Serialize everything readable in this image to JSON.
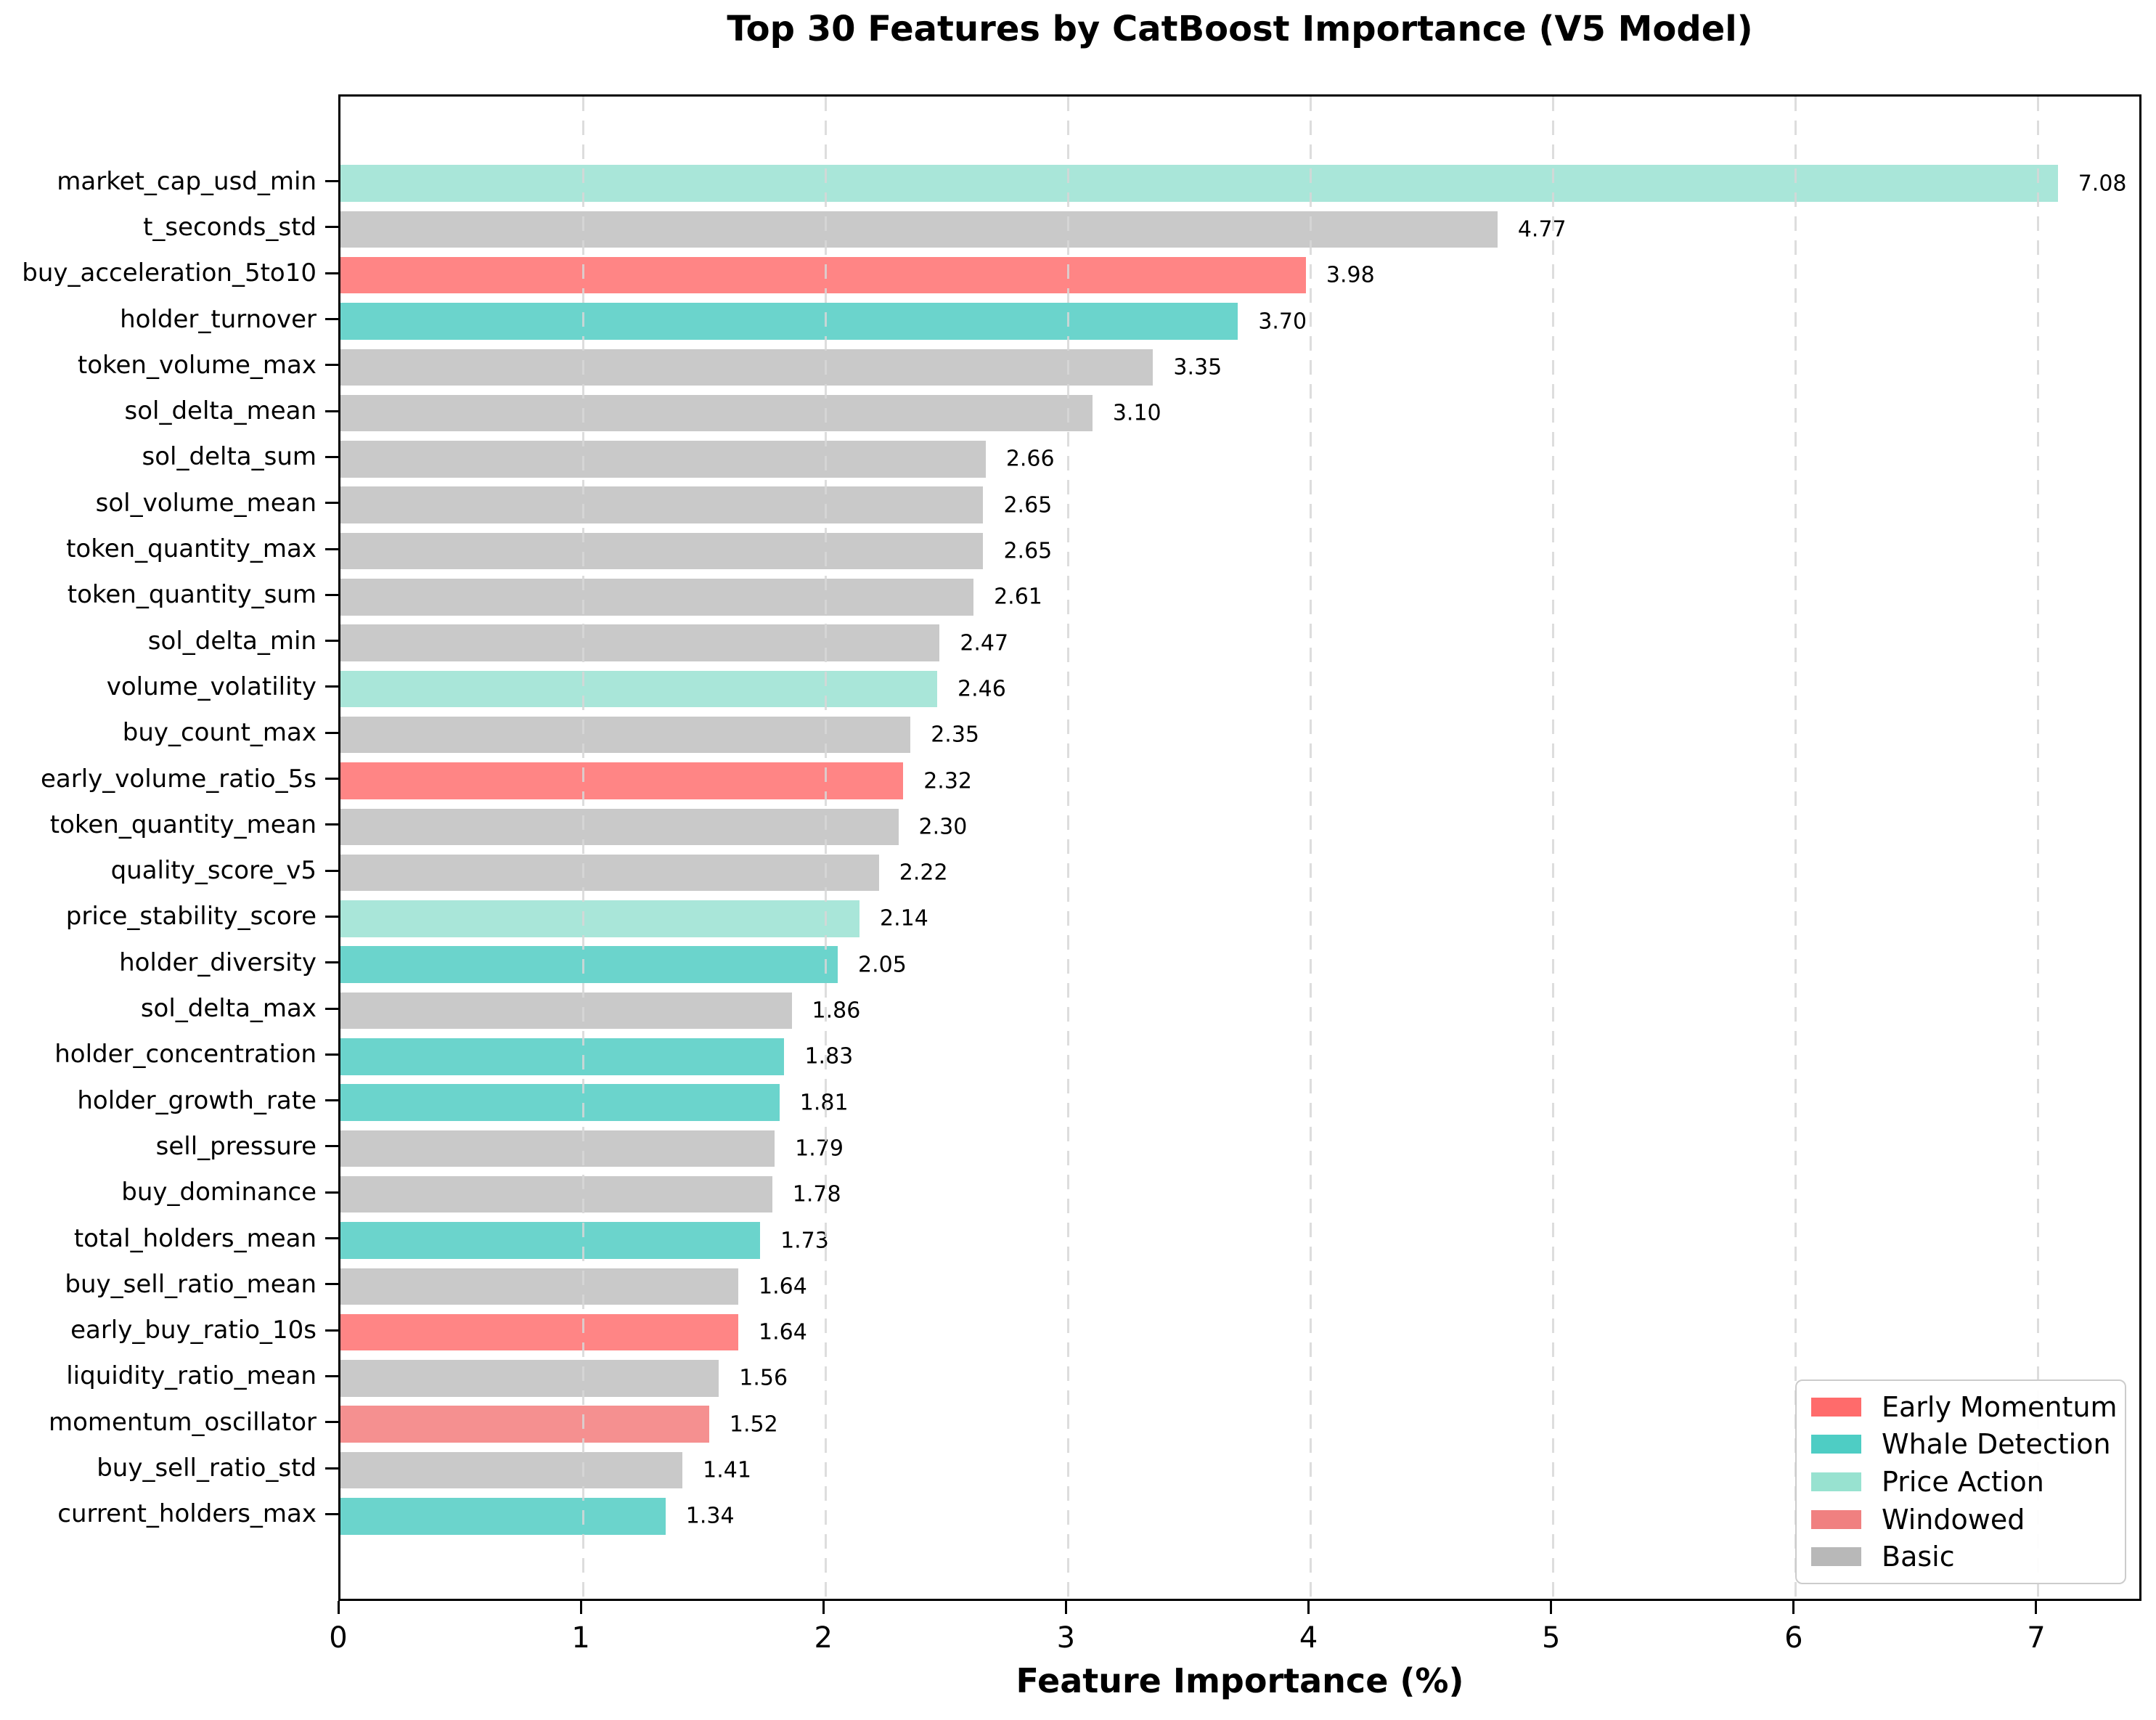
{
  "title": "Top 30 Features by CatBoost Importance (V5 Model)",
  "chart_data": {
    "type": "bar",
    "orientation": "horizontal",
    "title": "Top 30 Features by CatBoost Importance (V5 Model)",
    "xlabel": "Feature Importance (%)",
    "ylabel": "",
    "xlim": [
      0,
      7.434
    ],
    "xticks": [
      0,
      1,
      2,
      3,
      4,
      5,
      6,
      7
    ],
    "grid": "vertical-dashed",
    "legend_position": "lower right",
    "value_label_decimals": 2,
    "categories": {
      "early_momentum": {
        "label": "Early Momentum",
        "legend_color": "#FF6B6B",
        "bar_color": "#FF8585"
      },
      "whale_detection": {
        "label": "Whale Detection",
        "legend_color": "#4ECDC4",
        "bar_color": "#6BD4CC"
      },
      "price_action": {
        "label": "Price Action",
        "legend_color": "#98E2D0",
        "bar_color": "#A9E6D9"
      },
      "windowed": {
        "label": "Windowed",
        "legend_color": "#F08080",
        "bar_color": "#F59090"
      },
      "basic": {
        "label": "Basic",
        "legend_color": "#B8B8B8",
        "bar_color": "#C9C9C9"
      }
    },
    "legend_order": [
      "early_momentum",
      "whale_detection",
      "price_action",
      "windowed",
      "basic"
    ],
    "features": [
      {
        "name": "market_cap_usd_min",
        "value": 7.08,
        "category": "price_action"
      },
      {
        "name": "t_seconds_std",
        "value": 4.77,
        "category": "basic"
      },
      {
        "name": "buy_acceleration_5to10",
        "value": 3.98,
        "category": "early_momentum"
      },
      {
        "name": "holder_turnover",
        "value": 3.7,
        "category": "whale_detection"
      },
      {
        "name": "token_volume_max",
        "value": 3.35,
        "category": "basic"
      },
      {
        "name": "sol_delta_mean",
        "value": 3.1,
        "category": "basic"
      },
      {
        "name": "sol_delta_sum",
        "value": 2.66,
        "category": "basic"
      },
      {
        "name": "sol_volume_mean",
        "value": 2.65,
        "category": "basic"
      },
      {
        "name": "token_quantity_max",
        "value": 2.65,
        "category": "basic"
      },
      {
        "name": "token_quantity_sum",
        "value": 2.61,
        "category": "basic"
      },
      {
        "name": "sol_delta_min",
        "value": 2.47,
        "category": "basic"
      },
      {
        "name": "volume_volatility",
        "value": 2.46,
        "category": "price_action"
      },
      {
        "name": "buy_count_max",
        "value": 2.35,
        "category": "basic"
      },
      {
        "name": "early_volume_ratio_5s",
        "value": 2.32,
        "category": "early_momentum"
      },
      {
        "name": "token_quantity_mean",
        "value": 2.3,
        "category": "basic"
      },
      {
        "name": "quality_score_v5",
        "value": 2.22,
        "category": "basic"
      },
      {
        "name": "price_stability_score",
        "value": 2.14,
        "category": "price_action"
      },
      {
        "name": "holder_diversity",
        "value": 2.05,
        "category": "whale_detection"
      },
      {
        "name": "sol_delta_max",
        "value": 1.86,
        "category": "basic"
      },
      {
        "name": "holder_concentration",
        "value": 1.83,
        "category": "whale_detection"
      },
      {
        "name": "holder_growth_rate",
        "value": 1.81,
        "category": "whale_detection"
      },
      {
        "name": "sell_pressure",
        "value": 1.79,
        "category": "basic"
      },
      {
        "name": "buy_dominance",
        "value": 1.78,
        "category": "basic"
      },
      {
        "name": "total_holders_mean",
        "value": 1.73,
        "category": "whale_detection"
      },
      {
        "name": "buy_sell_ratio_mean",
        "value": 1.64,
        "category": "basic"
      },
      {
        "name": "early_buy_ratio_10s",
        "value": 1.64,
        "category": "early_momentum"
      },
      {
        "name": "liquidity_ratio_mean",
        "value": 1.56,
        "category": "basic"
      },
      {
        "name": "momentum_oscillator",
        "value": 1.52,
        "category": "windowed"
      },
      {
        "name": "buy_sell_ratio_std",
        "value": 1.41,
        "category": "basic"
      },
      {
        "name": "current_holders_max",
        "value": 1.34,
        "category": "whale_detection"
      }
    ]
  }
}
